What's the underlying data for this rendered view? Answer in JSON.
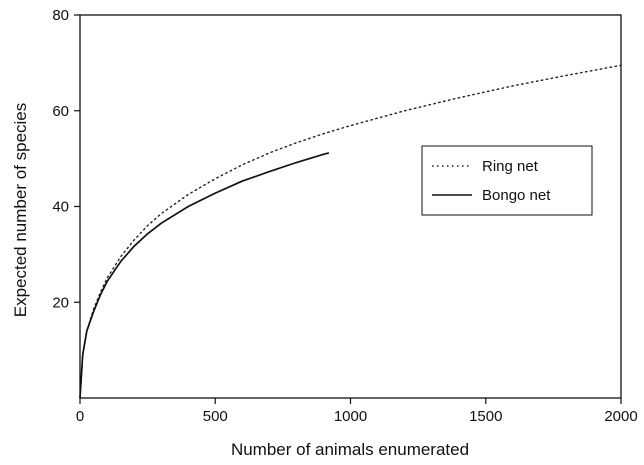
{
  "chart_data": {
    "type": "line",
    "title": "",
    "xlabel": "Number of animals enumerated",
    "ylabel": "Expected number of species",
    "xlim": [
      0,
      2000
    ],
    "ylim": [
      0,
      80
    ],
    "x_ticks": [
      0,
      500,
      1000,
      1500,
      2000
    ],
    "y_ticks": [
      20,
      40,
      60,
      80
    ],
    "x_tick_labels": [
      "0",
      "500",
      "1000",
      "1500",
      "2000"
    ],
    "y_tick_labels": [
      "20",
      "40",
      "60",
      "80"
    ],
    "grid": false,
    "legend": {
      "position": "right",
      "entries": [
        "Ring net",
        "Bongo net"
      ]
    },
    "series": [
      {
        "name": "Ring net",
        "style": "dotted",
        "color": "#222222",
        "points": [
          [
            0,
            0
          ],
          [
            10,
            9
          ],
          [
            25,
            14
          ],
          [
            50,
            18.5
          ],
          [
            75,
            22
          ],
          [
            100,
            25
          ],
          [
            150,
            29.5
          ],
          [
            200,
            33
          ],
          [
            250,
            36
          ],
          [
            300,
            38.5
          ],
          [
            400,
            42.5
          ],
          [
            500,
            45.8
          ],
          [
            600,
            48.7
          ],
          [
            700,
            51.2
          ],
          [
            800,
            53.3
          ],
          [
            900,
            55.2
          ],
          [
            1000,
            56.9
          ],
          [
            1200,
            60
          ],
          [
            1400,
            62.7
          ],
          [
            1600,
            65.2
          ],
          [
            1800,
            67.4
          ],
          [
            2000,
            69.5
          ]
        ]
      },
      {
        "name": "Bongo net",
        "style": "solid",
        "color": "#111111",
        "points": [
          [
            0,
            0
          ],
          [
            10,
            9
          ],
          [
            25,
            14
          ],
          [
            50,
            18
          ],
          [
            75,
            21.5
          ],
          [
            100,
            24.3
          ],
          [
            150,
            28.5
          ],
          [
            200,
            31.7
          ],
          [
            250,
            34.3
          ],
          [
            300,
            36.5
          ],
          [
            400,
            40
          ],
          [
            500,
            42.8
          ],
          [
            600,
            45.3
          ],
          [
            700,
            47.3
          ],
          [
            800,
            49.2
          ],
          [
            900,
            50.9
          ],
          [
            920,
            51.2
          ]
        ]
      }
    ]
  }
}
